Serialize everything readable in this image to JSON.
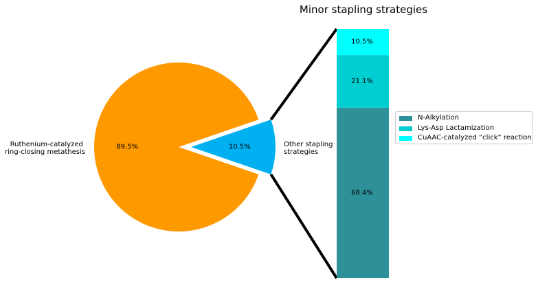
{
  "chart_data": [
    {
      "type": "pie",
      "title": "",
      "slices": [
        {
          "label_lines": [
            "Ruthenium-catalyzed",
            "ring-closing metathesis"
          ],
          "value": 89.5,
          "value_label": "89.5%",
          "color": "#FF9900",
          "explode": false
        },
        {
          "label_lines": [
            "Other stapling",
            "strategies"
          ],
          "value": 10.5,
          "value_label": "10.5%",
          "color": "#00B0F0",
          "explode": true
        }
      ]
    },
    {
      "type": "bar",
      "stacked": true,
      "title": "Minor stapling strategies",
      "legend_position": "center-right",
      "series": [
        {
          "name": "N-Alkylation",
          "value": 68.4,
          "value_label": "68.4%",
          "color": "#2E9199"
        },
        {
          "name": "Lys-Asp Lactamization",
          "value": 21.1,
          "value_label": "21.1%",
          "color": "#00CED1"
        },
        {
          "name": "CuAAC-catalyzed “click” reaction",
          "value": 10.5,
          "value_label": "10.5%",
          "color": "#00FFFF"
        }
      ]
    }
  ]
}
